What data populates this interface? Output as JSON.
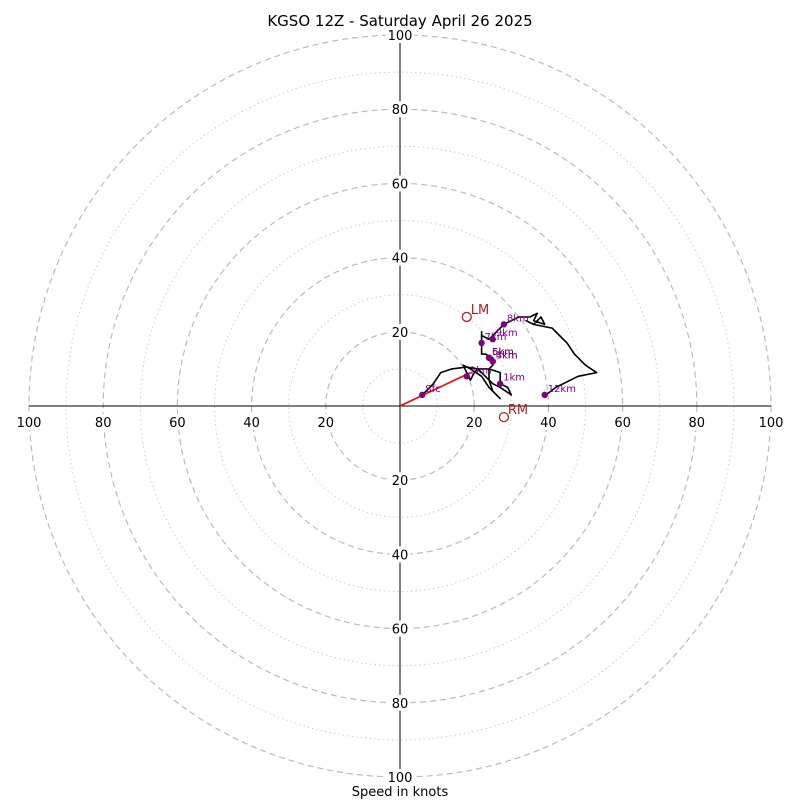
{
  "chart_data": {
    "type": "scatter",
    "title": "KGSO 12Z - Saturday April 26 2025",
    "xlabel": "Speed in knots",
    "units": "knots",
    "range": 100,
    "ring_major": [
      20,
      40,
      60,
      80,
      100
    ],
    "ring_minor": [
      10,
      30,
      50,
      70,
      90
    ],
    "tick_labels": [
      "20",
      "40",
      "60",
      "80",
      "100"
    ],
    "grid": true,
    "colors": {
      "trace": "#000000",
      "points": "#800080",
      "motion": "#b22222",
      "mean_vector": "#ff0000",
      "grid": "#bbbbbb"
    },
    "trace": [
      [
        6,
        3
      ],
      [
        9,
        6
      ],
      [
        11,
        9
      ],
      [
        14,
        10
      ],
      [
        18,
        10.5
      ],
      [
        21,
        10
      ],
      [
        24,
        10
      ],
      [
        27,
        9
      ],
      [
        27,
        6
      ],
      [
        29,
        5
      ],
      [
        30,
        3
      ],
      [
        27,
        5
      ],
      [
        25,
        6
      ],
      [
        23,
        8
      ],
      [
        22,
        9
      ],
      [
        21,
        10
      ],
      [
        20,
        9
      ],
      [
        19,
        7
      ],
      [
        18,
        9
      ],
      [
        17,
        11
      ],
      [
        19,
        10
      ],
      [
        22,
        8
      ],
      [
        24,
        5
      ],
      [
        26,
        3
      ],
      [
        27,
        2
      ],
      [
        25,
        4
      ],
      [
        24,
        7
      ],
      [
        24,
        10
      ],
      [
        25,
        11
      ],
      [
        25,
        13
      ],
      [
        23,
        14
      ],
      [
        22,
        14
      ],
      [
        22,
        17
      ],
      [
        22,
        20
      ],
      [
        22,
        19
      ],
      [
        24,
        18
      ],
      [
        26,
        20
      ],
      [
        27,
        21
      ],
      [
        28,
        22
      ],
      [
        30,
        23
      ],
      [
        32,
        24
      ],
      [
        35,
        24
      ],
      [
        37,
        25
      ],
      [
        36,
        23
      ],
      [
        39,
        22
      ],
      [
        38,
        24
      ],
      [
        36,
        22
      ],
      [
        34,
        23
      ],
      [
        36,
        22
      ],
      [
        41,
        21
      ],
      [
        43,
        19
      ],
      [
        45,
        17
      ],
      [
        47,
        14
      ],
      [
        50,
        11
      ],
      [
        53,
        9
      ],
      [
        48,
        8
      ],
      [
        42,
        5
      ],
      [
        40,
        3.5
      ],
      [
        39,
        3
      ]
    ],
    "height_points": [
      {
        "label": "Sfc",
        "u": 6,
        "v": 3
      },
      {
        "label": "1km",
        "u": 27,
        "v": 6
      },
      {
        "label": "2km",
        "u": 18,
        "v": 8
      },
      {
        "label": "3km",
        "u": 25,
        "v": 12
      },
      {
        "label": "4km",
        "u": 25,
        "v": 12
      },
      {
        "label": "5km",
        "u": 24,
        "v": 13
      },
      {
        "label": "6km",
        "u": 24,
        "v": 13
      },
      {
        "label": "7km",
        "u": 22,
        "v": 17
      },
      {
        "label": "8km",
        "u": 28,
        "v": 22
      },
      {
        "label": "9km",
        "u": 25,
        "v": 18
      },
      {
        "label": "12km",
        "u": 39,
        "v": 3
      }
    ],
    "storm_motion": [
      {
        "label": "LM",
        "u": 18,
        "v": 24
      },
      {
        "label": "RM",
        "u": 28,
        "v": -3
      }
    ],
    "mean_wind": {
      "u": 19,
      "v": 9
    }
  }
}
